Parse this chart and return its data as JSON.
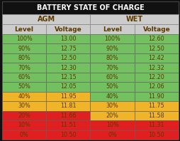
{
  "title": "BATTERY STATE OF CHARGE",
  "col_headers": [
    "AGM",
    "WET"
  ],
  "sub_headers": [
    "Level",
    "Voltage",
    "Level",
    "Voltage"
  ],
  "rows": [
    [
      "100%",
      "13.00",
      "100%",
      "12.60"
    ],
    [
      "90%",
      "12.75",
      "90%",
      "12.50"
    ],
    [
      "80%",
      "12.50",
      "80%",
      "12.42"
    ],
    [
      "70%",
      "12.30",
      "70%",
      "12.32"
    ],
    [
      "60%",
      "12.15",
      "60%",
      "12.20"
    ],
    [
      "50%",
      "12.05",
      "50%",
      "12.06"
    ],
    [
      "40%",
      "11.95",
      "40%",
      "11.90"
    ],
    [
      "30%",
      "11.81",
      "30%",
      "11.75"
    ],
    [
      "20%",
      "11.66",
      "20%",
      "11.58"
    ],
    [
      "10%",
      "11.51",
      "10%",
      "11.31"
    ],
    [
      "0%",
      "10.50",
      "0%",
      "10.50"
    ]
  ],
  "row_colors_agm": [
    "#72c060",
    "#72c060",
    "#72c060",
    "#72c060",
    "#72c060",
    "#72c060",
    "#f0b429",
    "#f0b429",
    "#e02020",
    "#e02020",
    "#e02020"
  ],
  "row_colors_wet": [
    "#72c060",
    "#72c060",
    "#72c060",
    "#72c060",
    "#72c060",
    "#72c060",
    "#72c060",
    "#f0b429",
    "#f0b429",
    "#e02020",
    "#e02020"
  ],
  "text_color": "#5a3a00",
  "header_bg": "#cccccc",
  "title_bg": "#111111",
  "title_color": "#ffffff",
  "background": "#111111",
  "grid_color": "#888888"
}
